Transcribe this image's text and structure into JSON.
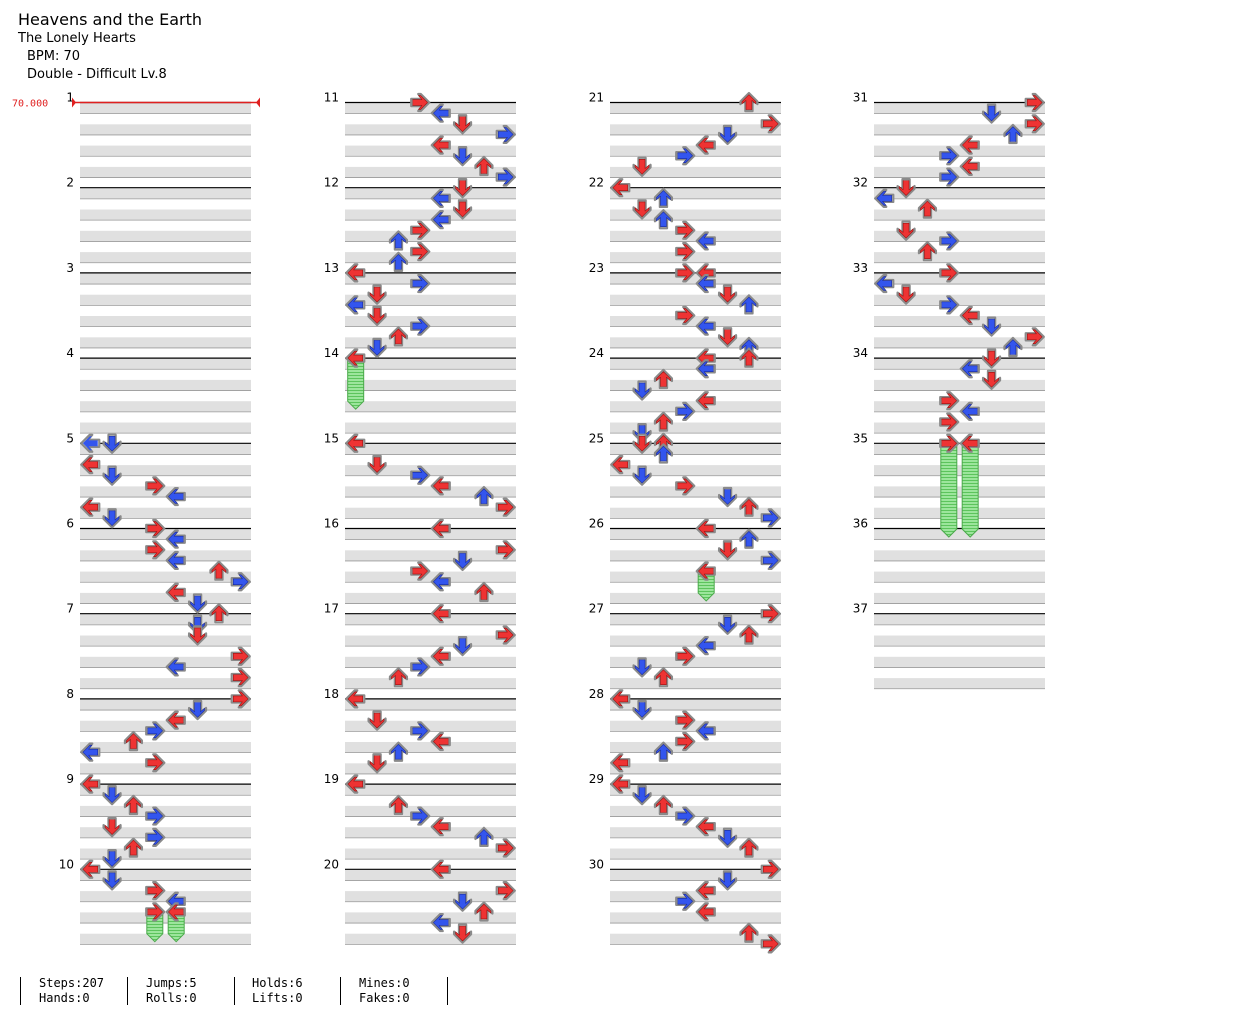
{
  "song": {
    "title": "Heavens and the Earth",
    "artist": "The Lonely Hearts",
    "bpm_label": "BPM: 70",
    "difficulty_label": "Double - Difficult Lv.8"
  },
  "bpm_marker": "70.000",
  "measures": [
    "1",
    "2",
    "3",
    "4",
    "5",
    "6",
    "7",
    "8",
    "9",
    "10",
    "11",
    "12",
    "13",
    "14",
    "15",
    "16",
    "17",
    "18",
    "19",
    "20",
    "21",
    "22",
    "23",
    "24",
    "25",
    "26",
    "27",
    "28",
    "29",
    "30",
    "31",
    "32",
    "33",
    "34",
    "35",
    "36",
    "37"
  ],
  "stats": {
    "steps": "Steps:207",
    "hands": "Hands:0",
    "jumps": "Jumps:5",
    "rolls": "Rolls:0",
    "holds": "Holds:6",
    "lifts": "Lifts:0",
    "mines": "Mines:0",
    "fakes": "Fakes:0"
  },
  "colors": {
    "quarter": "#ee3333",
    "eighth": "#3355ee",
    "hold": "#7ddb7d"
  },
  "notes_by_column": [
    [
      [
        5,
        0,
        0
      ],
      [
        5,
        1,
        1
      ],
      [
        5.25,
        0,
        2
      ],
      [
        5.375,
        1,
        1
      ],
      [
        5.5,
        3,
        2
      ],
      [
        5.625,
        4,
        1
      ],
      [
        5.75,
        0,
        2
      ],
      [
        5.875,
        1,
        1
      ],
      [
        6,
        3,
        2
      ],
      [
        6.125,
        4,
        1
      ],
      [
        6.25,
        3,
        2
      ],
      [
        6.375,
        4,
        1
      ],
      [
        6.5,
        6,
        2
      ],
      [
        6.625,
        7,
        1
      ],
      [
        6.75,
        4,
        2
      ],
      [
        6.875,
        5,
        1
      ],
      [
        7,
        6,
        2
      ],
      [
        7.125,
        5,
        1
      ],
      [
        7.25,
        5,
        2
      ],
      [
        7.5,
        7,
        2
      ],
      [
        7.625,
        4,
        1
      ],
      [
        7.75,
        7,
        2
      ],
      [
        8,
        7,
        2
      ],
      [
        8.125,
        5,
        1
      ],
      [
        8.25,
        4,
        2
      ],
      [
        8.375,
        3,
        1
      ],
      [
        8.5,
        2,
        2
      ],
      [
        8.625,
        0,
        1
      ],
      [
        8.75,
        3,
        2
      ],
      [
        9,
        0,
        2
      ],
      [
        9.125,
        1,
        1
      ],
      [
        9.25,
        2,
        2
      ],
      [
        9.375,
        3,
        1
      ],
      [
        9.5,
        1,
        2
      ],
      [
        9.625,
        3,
        1
      ],
      [
        9.75,
        2,
        2
      ],
      [
        9.875,
        1,
        1
      ],
      [
        10,
        0,
        2
      ],
      [
        10.125,
        1,
        1
      ],
      [
        10.25,
        3,
        2
      ],
      [
        10.375,
        4,
        1
      ],
      [
        10.5,
        3,
        2
      ],
      [
        10.5,
        4,
        2
      ]
    ],
    [
      [
        11,
        3,
        2
      ],
      [
        11.125,
        4,
        1
      ],
      [
        11.25,
        5,
        2
      ],
      [
        11.375,
        7,
        1
      ],
      [
        11.5,
        4,
        2
      ],
      [
        11.625,
        5,
        1
      ],
      [
        11.75,
        6,
        2
      ],
      [
        11.875,
        7,
        1
      ],
      [
        12,
        5,
        2
      ],
      [
        12.125,
        4,
        1
      ],
      [
        12.25,
        5,
        2
      ],
      [
        12.375,
        4,
        1
      ],
      [
        12.5,
        3,
        2
      ],
      [
        12.625,
        2,
        1
      ],
      [
        12.75,
        3,
        2
      ],
      [
        12.875,
        2,
        1
      ],
      [
        13,
        0,
        2
      ],
      [
        13.125,
        3,
        1
      ],
      [
        13.25,
        1,
        2
      ],
      [
        13.375,
        0,
        1
      ],
      [
        13.5,
        1,
        2
      ],
      [
        13.625,
        3,
        1
      ],
      [
        13.75,
        2,
        2
      ],
      [
        13.875,
        1,
        1
      ],
      [
        14,
        0,
        2
      ],
      [
        15,
        0,
        2
      ],
      [
        15.25,
        1,
        2
      ],
      [
        15.375,
        3,
        1
      ],
      [
        15.5,
        4,
        2
      ],
      [
        15.625,
        6,
        1
      ],
      [
        15.75,
        7,
        2
      ],
      [
        16,
        4,
        2
      ],
      [
        16.25,
        7,
        2
      ],
      [
        16.375,
        5,
        1
      ],
      [
        16.5,
        3,
        2
      ],
      [
        16.625,
        4,
        1
      ],
      [
        16.75,
        6,
        2
      ],
      [
        17,
        4,
        2
      ],
      [
        17.25,
        7,
        2
      ],
      [
        17.375,
        5,
        1
      ],
      [
        17.5,
        4,
        2
      ],
      [
        17.625,
        3,
        1
      ],
      [
        17.75,
        2,
        2
      ],
      [
        18,
        0,
        2
      ],
      [
        18.25,
        1,
        2
      ],
      [
        18.375,
        3,
        1
      ],
      [
        18.5,
        4,
        2
      ],
      [
        18.625,
        2,
        1
      ],
      [
        18.75,
        1,
        2
      ],
      [
        19,
        0,
        2
      ],
      [
        19.25,
        2,
        2
      ],
      [
        19.375,
        3,
        1
      ],
      [
        19.5,
        4,
        2
      ],
      [
        19.625,
        6,
        1
      ],
      [
        19.75,
        7,
        2
      ],
      [
        20,
        4,
        2
      ],
      [
        20.25,
        7,
        2
      ],
      [
        20.375,
        5,
        1
      ],
      [
        20.5,
        6,
        2
      ],
      [
        20.625,
        4,
        1
      ],
      [
        20.75,
        5,
        2
      ]
    ],
    [
      [
        21,
        6,
        2
      ],
      [
        21.25,
        7,
        2
      ],
      [
        21.375,
        5,
        1
      ],
      [
        21.5,
        4,
        2
      ],
      [
        21.625,
        3,
        1
      ],
      [
        21.75,
        1,
        2
      ],
      [
        22,
        0,
        2
      ],
      [
        22.125,
        2,
        1
      ],
      [
        22.25,
        1,
        2
      ],
      [
        22.375,
        2,
        1
      ],
      [
        22.5,
        3,
        2
      ],
      [
        22.625,
        4,
        1
      ],
      [
        22.75,
        3,
        2
      ],
      [
        23,
        3,
        2
      ],
      [
        23,
        4,
        2
      ],
      [
        23.125,
        4,
        1
      ],
      [
        23.25,
        5,
        2
      ],
      [
        23.375,
        6,
        1
      ],
      [
        23.5,
        3,
        2
      ],
      [
        23.625,
        4,
        1
      ],
      [
        23.75,
        5,
        2
      ],
      [
        23.875,
        6,
        1
      ],
      [
        24,
        4,
        2
      ],
      [
        24,
        6,
        2
      ],
      [
        24.125,
        4,
        1
      ],
      [
        24.25,
        2,
        2
      ],
      [
        24.375,
        1,
        1
      ],
      [
        24.5,
        4,
        2
      ],
      [
        24.625,
        3,
        1
      ],
      [
        24.75,
        2,
        2
      ],
      [
        24.875,
        1,
        1
      ],
      [
        25,
        1,
        2
      ],
      [
        25,
        2,
        2
      ],
      [
        25.125,
        2,
        1
      ],
      [
        25.25,
        0,
        2
      ],
      [
        25.375,
        1,
        1
      ],
      [
        25.5,
        3,
        2
      ],
      [
        25.625,
        5,
        1
      ],
      [
        25.75,
        6,
        2
      ],
      [
        25.875,
        7,
        1
      ],
      [
        26,
        4,
        2
      ],
      [
        26.125,
        6,
        1
      ],
      [
        26.25,
        5,
        2
      ],
      [
        26.375,
        7,
        1
      ],
      [
        26.5,
        4,
        2
      ],
      [
        27,
        7,
        2
      ],
      [
        27.125,
        5,
        1
      ],
      [
        27.25,
        6,
        2
      ],
      [
        27.375,
        4,
        1
      ],
      [
        27.5,
        3,
        2
      ],
      [
        27.625,
        1,
        1
      ],
      [
        27.75,
        2,
        2
      ],
      [
        28,
        0,
        2
      ],
      [
        28.125,
        1,
        1
      ],
      [
        28.25,
        3,
        2
      ],
      [
        28.375,
        4,
        1
      ],
      [
        28.5,
        3,
        2
      ],
      [
        28.625,
        2,
        1
      ],
      [
        28.75,
        0,
        2
      ],
      [
        29,
        0,
        2
      ],
      [
        29.125,
        1,
        1
      ],
      [
        29.25,
        2,
        2
      ],
      [
        29.375,
        3,
        1
      ],
      [
        29.5,
        4,
        2
      ],
      [
        29.625,
        5,
        1
      ],
      [
        29.75,
        6,
        2
      ],
      [
        30,
        7,
        2
      ],
      [
        30.125,
        5,
        1
      ],
      [
        30.25,
        4,
        2
      ],
      [
        30.375,
        3,
        1
      ],
      [
        30.5,
        4,
        2
      ],
      [
        30.75,
        6,
        2
      ],
      [
        30.875,
        7,
        2
      ]
    ],
    [
      [
        31,
        7,
        2
      ],
      [
        31.125,
        5,
        1
      ],
      [
        31.25,
        7,
        2
      ],
      [
        31.375,
        6,
        1
      ],
      [
        31.5,
        4,
        2
      ],
      [
        31.625,
        3,
        1
      ],
      [
        31.75,
        4,
        2
      ],
      [
        31.875,
        3,
        1
      ],
      [
        32,
        1,
        2
      ],
      [
        32.125,
        0,
        1
      ],
      [
        32.25,
        2,
        2
      ],
      [
        32.5,
        1,
        2
      ],
      [
        32.625,
        3,
        1
      ],
      [
        32.75,
        2,
        2
      ],
      [
        33,
        3,
        2
      ],
      [
        33.125,
        0,
        1
      ],
      [
        33.25,
        1,
        2
      ],
      [
        33.375,
        3,
        1
      ],
      [
        33.5,
        4,
        2
      ],
      [
        33.625,
        5,
        1
      ],
      [
        33.75,
        7,
        2
      ],
      [
        33.875,
        6,
        1
      ],
      [
        34,
        5,
        2
      ],
      [
        34.125,
        4,
        1
      ],
      [
        34.25,
        5,
        2
      ],
      [
        34.5,
        3,
        2
      ],
      [
        34.625,
        4,
        1
      ],
      [
        34.75,
        3,
        2
      ],
      [
        35,
        3,
        2
      ],
      [
        35,
        4,
        2
      ]
    ]
  ],
  "holds_by_column": [
    [
      [
        10.5,
        10.85,
        3
      ],
      [
        10.5,
        10.85,
        4
      ]
    ],
    [
      [
        14,
        14.6,
        0
      ]
    ],
    [
      [
        26.5,
        26.85,
        4
      ]
    ],
    [
      [
        35,
        36.1,
        3
      ],
      [
        35,
        36.1,
        4
      ]
    ]
  ]
}
